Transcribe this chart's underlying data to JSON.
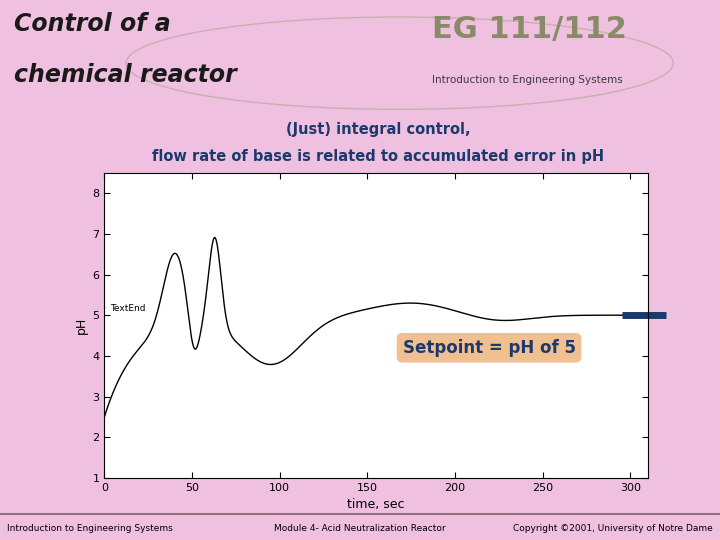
{
  "title_line1": "Control of a",
  "title_line2": "chemical reactor",
  "subtitle_line1": "(Just) integral control,",
  "subtitle_line2": "flow rate of base is related to accumulated error in pH",
  "xlabel": "time, sec",
  "ylabel": "pH",
  "ylim": [
    1,
    8.5
  ],
  "xlim": [
    0,
    310
  ],
  "yticks": [
    1,
    2,
    3,
    4,
    5,
    6,
    7,
    8
  ],
  "xticks": [
    0,
    50,
    100,
    150,
    200,
    250,
    300
  ],
  "setpoint": 5.0,
  "setpoint_label": "Setpoint = pH of 5",
  "curve_color": "#000000",
  "setpoint_color": "#1a3a6e",
  "bg_main": "#f0c0e0",
  "bg_header": "#c8c8a0",
  "bg_plot": "#ffffff",
  "bg_subtitle": "#f0c090",
  "bg_setpoint_box": "#f0c090",
  "title_color": "#1a1a1a",
  "subtitle_color": "#1a3a6e",
  "setpoint_text_color": "#1a3a6e",
  "footer_color": "#000000",
  "footer_left": "Introduction to Engineering Systems",
  "footer_center": "Module 4- Acid Neutralization Reactor",
  "footer_right": "Copyright ©2001, University of Notre Dame",
  "textend_label": "TextEnd"
}
